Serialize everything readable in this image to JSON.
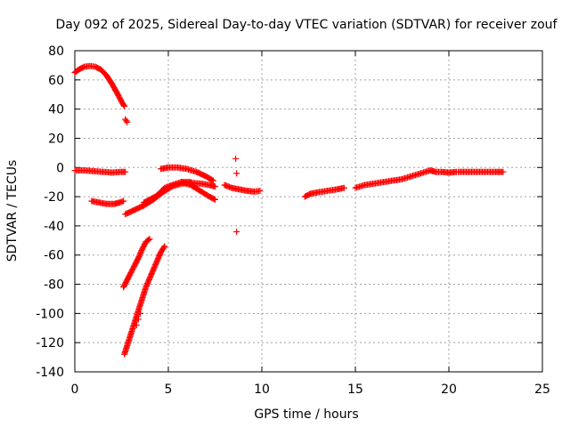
{
  "chart_data": {
    "type": "scatter",
    "title": "Day 092 of 2025, Sidereal Day-to-day VTEC variation (SDTVAR) for receiver zouf",
    "xlabel": "GPS time / hours",
    "ylabel": "SDTVAR / TECUs",
    "xlim": [
      0,
      25
    ],
    "ylim": [
      -140,
      80
    ],
    "x_ticks": [
      0,
      5,
      10,
      15,
      20,
      25
    ],
    "y_ticks": [
      -140,
      -120,
      -100,
      -80,
      -60,
      -40,
      -20,
      0,
      20,
      40,
      60,
      80
    ],
    "grid": true,
    "marker": "+",
    "series_color": "#ff0000",
    "series": [
      {
        "name": "arc-1-rise",
        "points": [
          [
            0.0,
            65
          ],
          [
            0.2,
            67
          ],
          [
            0.5,
            69
          ],
          [
            0.8,
            69.5
          ],
          [
            1.1,
            69
          ],
          [
            1.4,
            67
          ],
          [
            1.7,
            63
          ],
          [
            2.0,
            57
          ],
          [
            2.3,
            50
          ],
          [
            2.55,
            44
          ],
          [
            2.65,
            42
          ]
        ]
      },
      {
        "name": "arc-1-tail",
        "points": [
          [
            2.7,
            33
          ],
          [
            2.75,
            32
          ],
          [
            2.8,
            31
          ]
        ]
      },
      {
        "name": "arc-2",
        "points": [
          [
            0.0,
            -2
          ],
          [
            0.5,
            -2
          ],
          [
            1.0,
            -2.5
          ],
          [
            1.5,
            -3
          ],
          [
            2.0,
            -3.5
          ],
          [
            2.5,
            -3
          ],
          [
            2.7,
            -3
          ]
        ]
      },
      {
        "name": "arc-3",
        "points": [
          [
            0.9,
            -23
          ],
          [
            1.3,
            -24
          ],
          [
            1.7,
            -25
          ],
          [
            2.1,
            -25
          ],
          [
            2.4,
            -24
          ],
          [
            2.6,
            -23
          ]
        ]
      },
      {
        "name": "arc-4-lower",
        "points": [
          [
            2.65,
            -128
          ],
          [
            2.8,
            -122
          ],
          [
            3.0,
            -114
          ],
          [
            3.2,
            -106
          ],
          [
            3.4,
            -98
          ],
          [
            3.6,
            -90
          ],
          [
            3.8,
            -82
          ],
          [
            4.0,
            -76
          ],
          [
            4.2,
            -70
          ],
          [
            4.4,
            -64
          ],
          [
            4.6,
            -58
          ],
          [
            4.8,
            -54
          ]
        ]
      },
      {
        "name": "arc-4-mid",
        "points": [
          [
            2.6,
            -82
          ],
          [
            2.8,
            -77
          ],
          [
            3.0,
            -72
          ],
          [
            3.2,
            -67
          ],
          [
            3.4,
            -62
          ],
          [
            3.6,
            -56
          ],
          [
            3.8,
            -51
          ],
          [
            4.0,
            -49
          ]
        ]
      },
      {
        "name": "arc-4-short",
        "points": [
          [
            3.3,
            -108
          ],
          [
            3.4,
            -104
          ],
          [
            3.5,
            -100
          ]
        ]
      },
      {
        "name": "arc-5",
        "points": [
          [
            2.7,
            -32
          ],
          [
            3.2,
            -29
          ],
          [
            3.7,
            -26
          ],
          [
            4.2,
            -22
          ],
          [
            4.7,
            -17
          ],
          [
            5.2,
            -13
          ],
          [
            5.7,
            -11
          ],
          [
            6.2,
            -10.5
          ],
          [
            6.7,
            -11
          ],
          [
            7.2,
            -12
          ],
          [
            7.5,
            -13
          ]
        ]
      },
      {
        "name": "arc-5-under",
        "points": [
          [
            3.7,
            -24
          ],
          [
            4.0,
            -22
          ],
          [
            4.3,
            -20
          ],
          [
            4.6,
            -17
          ],
          [
            5.0,
            -14
          ]
        ]
      },
      {
        "name": "arc-6",
        "points": [
          [
            4.5,
            -18
          ],
          [
            4.8,
            -14
          ],
          [
            5.2,
            -12
          ],
          [
            5.7,
            -10
          ],
          [
            6.2,
            -10
          ]
        ]
      },
      {
        "name": "arc-7",
        "points": [
          [
            4.6,
            -1
          ],
          [
            5.0,
            0
          ],
          [
            5.5,
            0
          ],
          [
            6.0,
            -1
          ],
          [
            6.5,
            -3
          ],
          [
            7.0,
            -6
          ],
          [
            7.4,
            -9
          ]
        ]
      },
      {
        "name": "arc-8",
        "points": [
          [
            5.7,
            -10
          ],
          [
            6.2,
            -12
          ],
          [
            6.7,
            -16
          ],
          [
            7.2,
            -20
          ],
          [
            7.5,
            -22
          ]
        ]
      },
      {
        "name": "arc-9",
        "points": [
          [
            8.0,
            -12
          ],
          [
            8.4,
            -14
          ],
          [
            8.8,
            -15
          ],
          [
            9.2,
            -16
          ],
          [
            9.6,
            -16.5
          ],
          [
            9.9,
            -16
          ]
        ]
      },
      {
        "name": "outliers",
        "points": [
          [
            8.6,
            6
          ],
          [
            8.65,
            -4
          ],
          [
            8.65,
            -44
          ]
        ]
      },
      {
        "name": "arc-10",
        "points": [
          [
            12.3,
            -20
          ],
          [
            12.6,
            -18
          ],
          [
            13.0,
            -17
          ],
          [
            13.5,
            -16
          ],
          [
            14.0,
            -15
          ],
          [
            14.4,
            -14
          ]
        ]
      },
      {
        "name": "arc-11",
        "points": [
          [
            15.0,
            -14
          ],
          [
            15.5,
            -12
          ],
          [
            16.0,
            -11
          ],
          [
            16.5,
            -10
          ],
          [
            17.0,
            -9
          ],
          [
            17.5,
            -8
          ],
          [
            18.0,
            -6
          ],
          [
            18.5,
            -4
          ],
          [
            19.0,
            -2
          ]
        ]
      },
      {
        "name": "arc-12",
        "points": [
          [
            19.0,
            -2
          ],
          [
            19.3,
            -3
          ],
          [
            19.6,
            -3
          ],
          [
            20.0,
            -3.5
          ],
          [
            20.4,
            -3
          ]
        ]
      },
      {
        "name": "arc-13",
        "points": [
          [
            20.5,
            -3
          ],
          [
            21.0,
            -3
          ],
          [
            21.5,
            -3
          ],
          [
            22.0,
            -3
          ],
          [
            22.5,
            -3
          ],
          [
            22.9,
            -3
          ]
        ]
      }
    ]
  }
}
